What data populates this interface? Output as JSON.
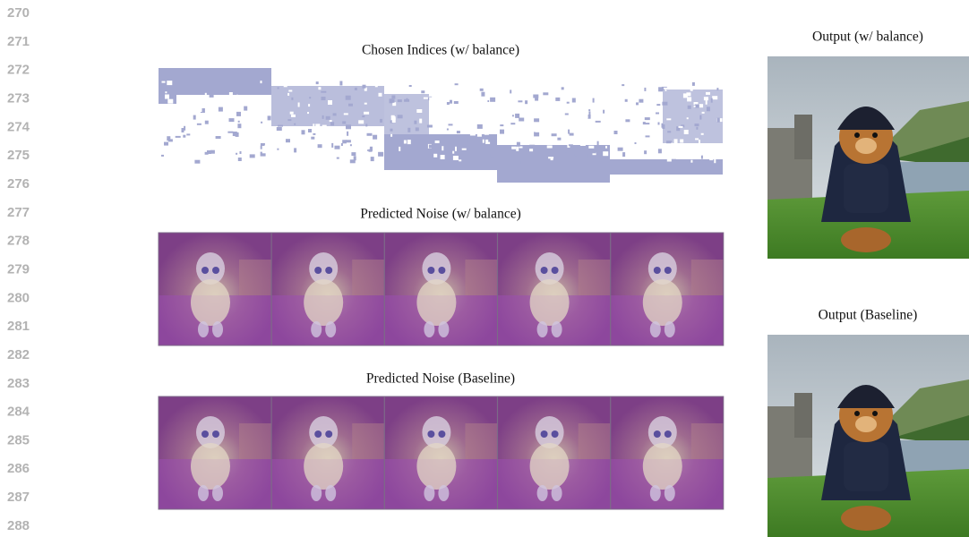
{
  "line_numbers": [
    270,
    271,
    272,
    273,
    274,
    275,
    276,
    277,
    278,
    279,
    280,
    281,
    282,
    283,
    284,
    285,
    286,
    287,
    288
  ],
  "figure": {
    "chosen_indices_title": "Chosen Indices (w/ balance)",
    "predicted_noise_balance_title": "Predicted Noise (w/ balance)",
    "predicted_noise_baseline_title": "Predicted Noise (Baseline)",
    "output_balance_title": "Output (w/ balance)",
    "output_baseline_title": "Output (Baseline)"
  }
}
